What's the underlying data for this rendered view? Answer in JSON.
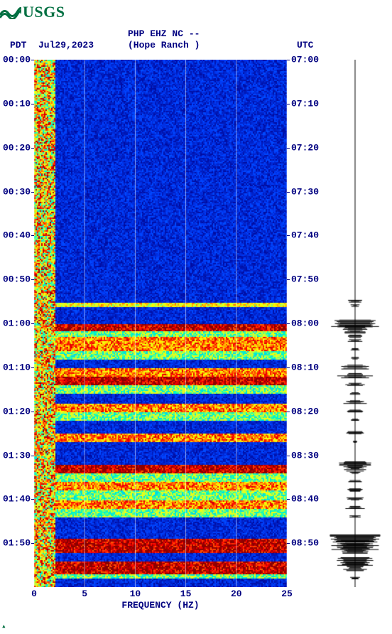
{
  "logo": {
    "text": "USGS",
    "color": "#006f41"
  },
  "header": {
    "tz_left": "PDT",
    "date": "Jul29,2023",
    "line1": "PHP EHZ NC --",
    "line2": "(Hope Ranch )",
    "tz_right": "UTC",
    "text_color": "#000080",
    "fontsize": 13
  },
  "spectrogram": {
    "type": "spectrogram",
    "xlim": [
      0,
      25
    ],
    "ylim_minutes": [
      0,
      120
    ],
    "grid_x": [
      0,
      5,
      10,
      15,
      20,
      25
    ],
    "grid_color": "#ffffff",
    "background_low": "#00008b",
    "background_med": "#0020c0",
    "colormap": [
      "#00008b",
      "#0040ff",
      "#00c0ff",
      "#00ffc0",
      "#c0ff40",
      "#ffff00",
      "#ff8000",
      "#ff0000",
      "#8b0000"
    ],
    "left_column": {
      "x_range_hz": [
        0,
        2
      ],
      "intensity": "high_variable"
    },
    "bands": [
      {
        "t0": 0,
        "t1": 55,
        "intensity": "low"
      },
      {
        "t0": 55,
        "t1": 56,
        "intensity": "med-high"
      },
      {
        "t0": 56,
        "t1": 60,
        "intensity": "low"
      },
      {
        "t0": 60,
        "t1": 61.5,
        "intensity": "very-high"
      },
      {
        "t0": 61.5,
        "t1": 63,
        "intensity": "med"
      },
      {
        "t0": 63,
        "t1": 66,
        "intensity": "high"
      },
      {
        "t0": 66,
        "t1": 68,
        "intensity": "med"
      },
      {
        "t0": 68,
        "t1": 70,
        "intensity": "low"
      },
      {
        "t0": 70,
        "t1": 72,
        "intensity": "high"
      },
      {
        "t0": 72,
        "t1": 74,
        "intensity": "very-high"
      },
      {
        "t0": 74,
        "t1": 76,
        "intensity": "med"
      },
      {
        "t0": 76,
        "t1": 78,
        "intensity": "low"
      },
      {
        "t0": 78,
        "t1": 80,
        "intensity": "high"
      },
      {
        "t0": 80,
        "t1": 82,
        "intensity": "med"
      },
      {
        "t0": 82,
        "t1": 85,
        "intensity": "low"
      },
      {
        "t0": 85,
        "t1": 87,
        "intensity": "high"
      },
      {
        "t0": 87,
        "t1": 92,
        "intensity": "low"
      },
      {
        "t0": 92,
        "t1": 94,
        "intensity": "very-high"
      },
      {
        "t0": 94,
        "t1": 96,
        "intensity": "med"
      },
      {
        "t0": 96,
        "t1": 98,
        "intensity": "high"
      },
      {
        "t0": 98,
        "t1": 100,
        "intensity": "med"
      },
      {
        "t0": 100,
        "t1": 102,
        "intensity": "high"
      },
      {
        "t0": 102,
        "t1": 104,
        "intensity": "med"
      },
      {
        "t0": 104,
        "t1": 106,
        "intensity": "low"
      },
      {
        "t0": 106,
        "t1": 109,
        "intensity": "low"
      },
      {
        "t0": 109,
        "t1": 112,
        "intensity": "very-high"
      },
      {
        "t0": 112,
        "t1": 114,
        "intensity": "low"
      },
      {
        "t0": 114,
        "t1": 117,
        "intensity": "very-high"
      },
      {
        "t0": 117,
        "t1": 118,
        "intensity": "med"
      },
      {
        "t0": 118,
        "t1": 120,
        "intensity": "low"
      }
    ],
    "xlabel": "FREQUENCY (HZ)",
    "xticks": [
      0,
      5,
      10,
      15,
      20,
      25
    ]
  },
  "time_axis": {
    "left_labels": [
      "00:00",
      "00:10",
      "00:20",
      "00:30",
      "00:40",
      "00:50",
      "01:00",
      "01:10",
      "01:20",
      "01:30",
      "01:40",
      "01:50"
    ],
    "right_labels": [
      "07:00",
      "07:10",
      "07:20",
      "07:30",
      "07:40",
      "07:50",
      "08:00",
      "08:10",
      "08:20",
      "08:30",
      "08:40",
      "08:50"
    ],
    "positions_min": [
      0,
      10,
      20,
      30,
      40,
      50,
      60,
      70,
      80,
      90,
      100,
      110
    ]
  },
  "seismogram": {
    "type": "wiggle",
    "color": "#000000",
    "baseline_x": 0.5,
    "amplitude_scale": 1.0,
    "events": [
      {
        "t": 55,
        "amp": 0.35
      },
      {
        "t": 56,
        "amp": 0.15
      },
      {
        "t": 60,
        "amp": 0.8
      },
      {
        "t": 61,
        "amp": 0.6
      },
      {
        "t": 62,
        "amp": 0.4
      },
      {
        "t": 63,
        "amp": 0.3
      },
      {
        "t": 64,
        "amp": 0.25
      },
      {
        "t": 66,
        "amp": 0.2
      },
      {
        "t": 68,
        "amp": 0.15
      },
      {
        "t": 70,
        "amp": 0.5
      },
      {
        "t": 72,
        "amp": 0.6
      },
      {
        "t": 74,
        "amp": 0.35
      },
      {
        "t": 76,
        "amp": 0.2
      },
      {
        "t": 78,
        "amp": 0.45
      },
      {
        "t": 80,
        "amp": 0.3
      },
      {
        "t": 82,
        "amp": 0.15
      },
      {
        "t": 85,
        "amp": 0.35
      },
      {
        "t": 87,
        "amp": 0.1
      },
      {
        "t": 92,
        "amp": 0.55
      },
      {
        "t": 93,
        "amp": 0.4
      },
      {
        "t": 94,
        "amp": 0.3
      },
      {
        "t": 96,
        "amp": 0.25
      },
      {
        "t": 98,
        "amp": 0.4
      },
      {
        "t": 100,
        "amp": 0.3
      },
      {
        "t": 102,
        "amp": 0.35
      },
      {
        "t": 104,
        "amp": 0.2
      },
      {
        "t": 109,
        "amp": 0.9
      },
      {
        "t": 110,
        "amp": 0.7
      },
      {
        "t": 111,
        "amp": 0.85
      },
      {
        "t": 112,
        "amp": 0.5
      },
      {
        "t": 114,
        "amp": 0.75
      },
      {
        "t": 115,
        "amp": 0.6
      },
      {
        "t": 116,
        "amp": 0.4
      },
      {
        "t": 118,
        "amp": 0.2
      }
    ]
  }
}
